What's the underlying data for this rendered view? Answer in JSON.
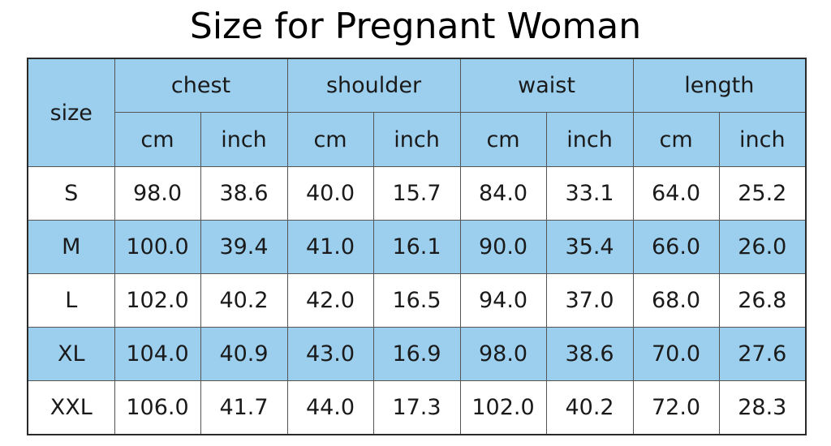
{
  "title": "Size for Pregnant Woman",
  "colors": {
    "header_bg": "#9ccfee",
    "alt_row_bg": "#9ccfee",
    "row_bg": "#ffffff",
    "border": "#555555"
  },
  "table": {
    "size_header": "size",
    "groups": [
      "chest",
      "shoulder",
      "waist",
      "length"
    ],
    "units": [
      "cm",
      "inch",
      "cm",
      "inch",
      "cm",
      "inch",
      "cm",
      "inch"
    ],
    "rows": [
      {
        "size": "S",
        "values": [
          "98.0",
          "38.6",
          "40.0",
          "15.7",
          "84.0",
          "33.1",
          "64.0",
          "25.2"
        ]
      },
      {
        "size": "M",
        "values": [
          "100.0",
          "39.4",
          "41.0",
          "16.1",
          "90.0",
          "35.4",
          "66.0",
          "26.0"
        ]
      },
      {
        "size": "L",
        "values": [
          "102.0",
          "40.2",
          "42.0",
          "16.5",
          "94.0",
          "37.0",
          "68.0",
          "26.8"
        ]
      },
      {
        "size": "XL",
        "values": [
          "104.0",
          "40.9",
          "43.0",
          "16.9",
          "98.0",
          "38.6",
          "70.0",
          "27.6"
        ]
      },
      {
        "size": "XXL",
        "values": [
          "106.0",
          "41.7",
          "44.0",
          "17.3",
          "102.0",
          "40.2",
          "72.0",
          "28.3"
        ]
      }
    ]
  }
}
